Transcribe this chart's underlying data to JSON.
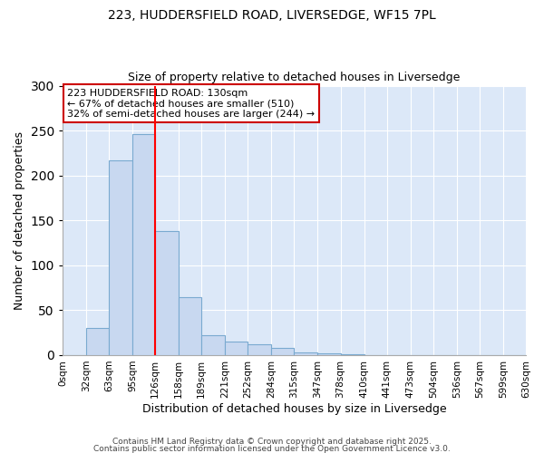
{
  "title1": "223, HUDDERSFIELD ROAD, LIVERSEDGE, WF15 7PL",
  "title2": "Size of property relative to detached houses in Liversedge",
  "xlabel": "Distribution of detached houses by size in Liversedge",
  "ylabel": "Number of detached properties",
  "bar_values": [
    0,
    30,
    217,
    246,
    138,
    65,
    22,
    15,
    12,
    8,
    3,
    2,
    1,
    0,
    0,
    0,
    0,
    0,
    0,
    0
  ],
  "bin_edges": [
    0,
    32,
    63,
    95,
    126,
    158,
    189,
    221,
    252,
    284,
    315,
    347,
    378,
    410,
    441,
    473,
    504,
    536,
    567,
    599,
    630
  ],
  "x_tick_labels": [
    "0sqm",
    "32sqm",
    "63sqm",
    "95sqm",
    "126sqm",
    "158sqm",
    "189sqm",
    "221sqm",
    "252sqm",
    "284sqm",
    "315sqm",
    "347sqm",
    "378sqm",
    "410sqm",
    "441sqm",
    "473sqm",
    "504sqm",
    "536sqm",
    "567sqm",
    "599sqm",
    "630sqm"
  ],
  "bar_color": "#c8d8f0",
  "bar_edge_color": "#7aaad0",
  "red_line_x": 126,
  "ylim": [
    0,
    300
  ],
  "yticks": [
    0,
    50,
    100,
    150,
    200,
    250,
    300
  ],
  "annotation_title": "223 HUDDERSFIELD ROAD: 130sqm",
  "annotation_line1": "← 67% of detached houses are smaller (510)",
  "annotation_line2": "32% of semi-detached houses are larger (244) →",
  "annotation_box_color": "#ffffff",
  "annotation_border_color": "#cc0000",
  "fig_background_color": "#ffffff",
  "plot_background_color": "#dce8f8",
  "footer1": "Contains HM Land Registry data © Crown copyright and database right 2025.",
  "footer2": "Contains public sector information licensed under the Open Government Licence v3.0."
}
